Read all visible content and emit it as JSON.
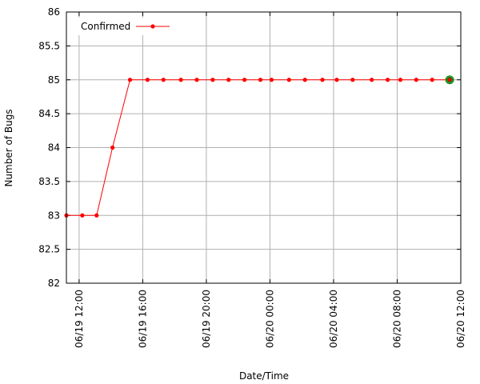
{
  "chart_data": {
    "type": "line",
    "title": "",
    "xlabel": "Date/Time",
    "ylabel": "Number of Bugs",
    "ylim": [
      82,
      86
    ],
    "y_ticks": [
      82,
      82.5,
      83,
      83.5,
      84,
      84.5,
      85,
      85.5,
      86
    ],
    "y_tick_labels": [
      "82",
      "82.5",
      "83",
      "83.5",
      "84",
      "84.5",
      "85",
      "85.5",
      "86"
    ],
    "x_range": [
      "06/19 11:12",
      "06/20 12:00"
    ],
    "x_ticks": [
      "06/19 12:00",
      "06/19 16:00",
      "06/19 20:00",
      "06/20 00:00",
      "06/20 04:00",
      "06/20 08:00",
      "06/20 12:00"
    ],
    "grid": true,
    "legend_position": "top-left",
    "series": [
      {
        "name": "Confirmed",
        "color": "#ff0000",
        "x": [
          "06/19 11:12",
          "06/19 12:12",
          "06/19 13:06",
          "06/19 14:06",
          "06/19 15:12",
          "06/19 16:18",
          "06/19 17:18",
          "06/19 18:24",
          "06/19 19:24",
          "06/19 20:24",
          "06/19 21:24",
          "06/19 22:24",
          "06/19 23:24",
          "06/20 00:06",
          "06/20 01:12",
          "06/20 02:12",
          "06/20 03:18",
          "06/20 04:12",
          "06/20 05:12",
          "06/20 06:24",
          "06/20 07:24",
          "06/20 08:12",
          "06/20 09:12",
          "06/20 10:12",
          "06/20 11:18"
        ],
        "values": [
          83,
          83,
          83,
          84,
          85,
          85,
          85,
          85,
          85,
          85,
          85,
          85,
          85,
          85,
          85,
          85,
          85,
          85,
          85,
          85,
          85,
          85,
          85,
          85,
          85
        ]
      }
    ],
    "highlight_last_point_color": "#008000"
  }
}
